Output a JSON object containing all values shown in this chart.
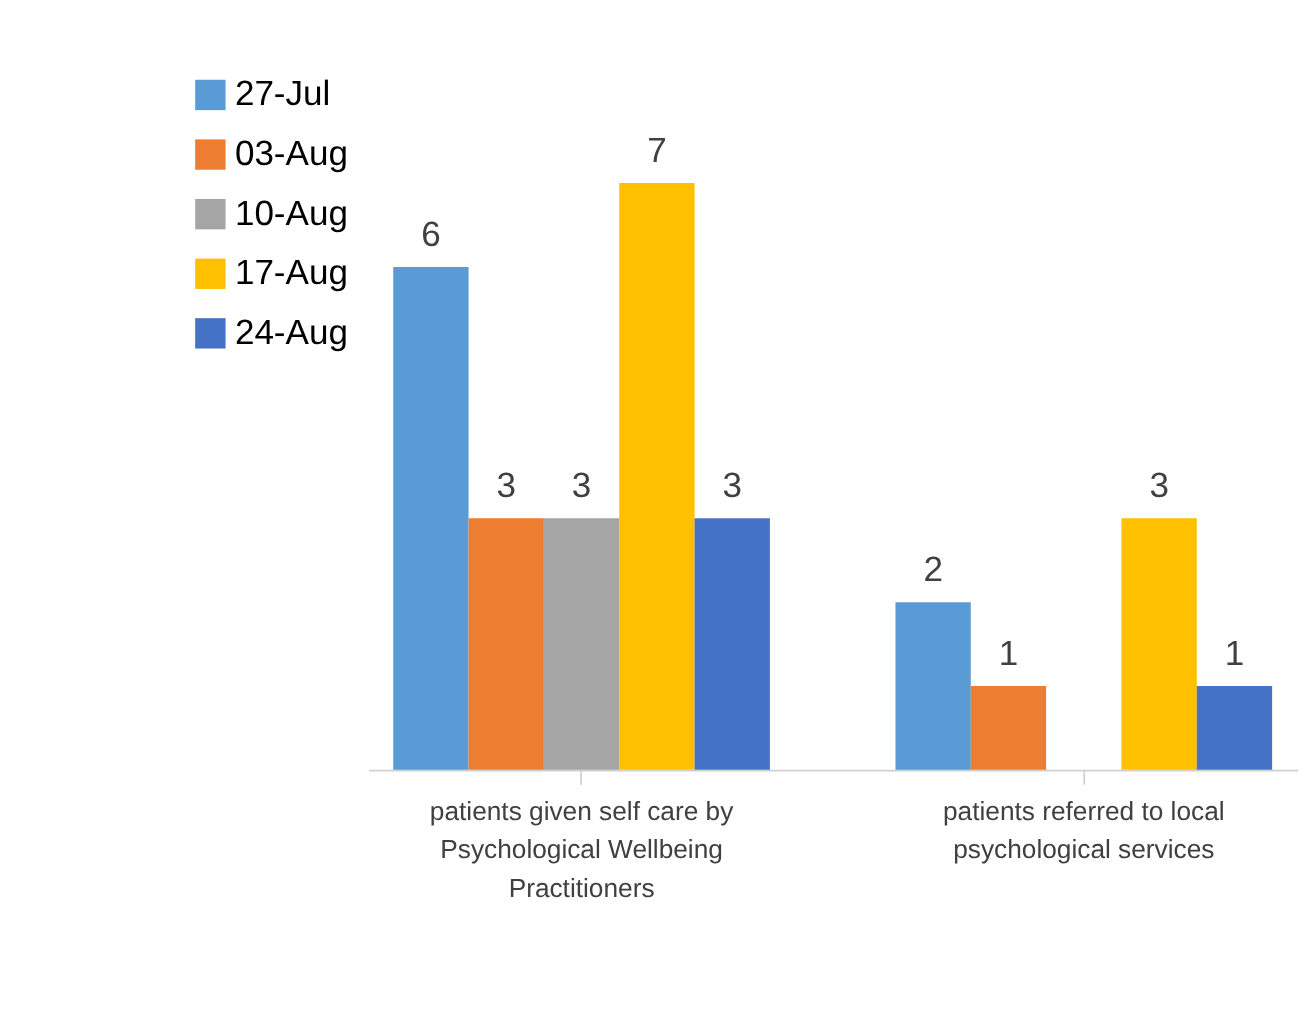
{
  "chart_data": {
    "type": "bar",
    "categories": [
      "patients given self care by Psychological Wellbeing Practitioners",
      "patients referred to local psychological services"
    ],
    "series": [
      {
        "name": "27-Jul",
        "color": "#5b9bd5",
        "values": [
          6,
          2
        ]
      },
      {
        "name": "03-Aug",
        "color": "#ed7d31",
        "values": [
          3,
          1
        ]
      },
      {
        "name": "10-Aug",
        "color": "#a5a5a5",
        "values": [
          3,
          null
        ]
      },
      {
        "name": "17-Aug",
        "color": "#ffc000",
        "values": [
          7,
          3
        ]
      },
      {
        "name": "24-Aug",
        "color": "#4472c4",
        "values": [
          3,
          1
        ]
      }
    ],
    "data_labels": true,
    "legend": "top left"
  }
}
